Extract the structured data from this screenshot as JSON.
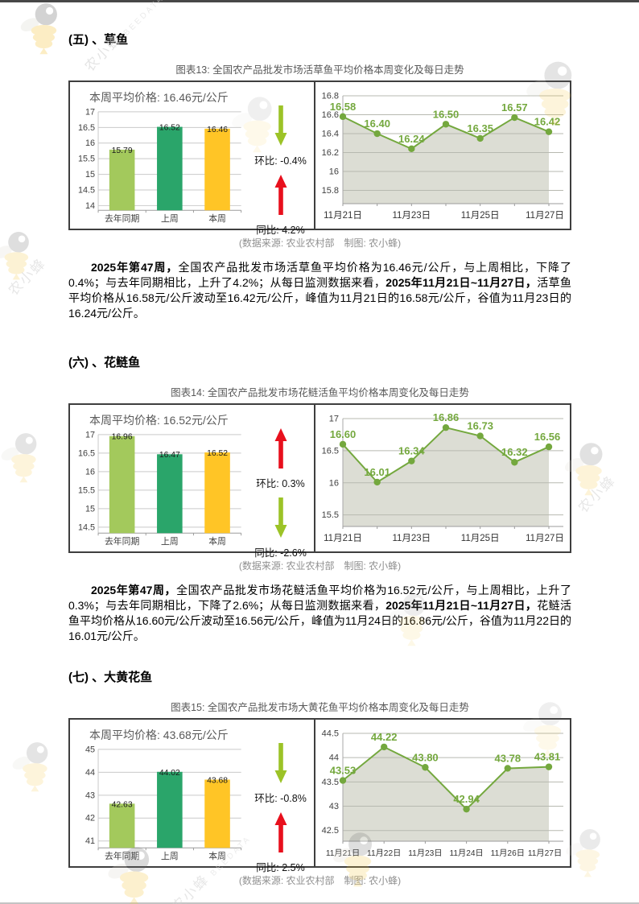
{
  "page": {
    "watermark": {
      "brand": "农小蜂",
      "brand_en": "BEEDATA"
    }
  },
  "sections": [
    {
      "heading": "(五) 、草鱼",
      "figure_title": "图表13: 全国农产品批发市场活草鱼平均价格本周变化及每日走势",
      "panel_title": "本周平均价格: 16.46元/公斤",
      "comparisons": [
        {
          "label": "环比:",
          "value": "-0.4%",
          "direction": "down",
          "color": "#9CC327"
        },
        {
          "label": "同比:",
          "value": "4.2%",
          "direction": "up",
          "color": "#E8101D"
        }
      ],
      "caption": "(数据来源: 农业农村部　制图: 农小蜂)",
      "paragraph": [
        {
          "text": "2025年第47周，",
          "bold": true
        },
        {
          "text": "全国农产品批发市场活草鱼平均价格为16.46元/公斤，与上周相比，下降了0.4%；与去年同期相比，上升了4.2%；从每日监测数据来看，",
          "bold": false
        },
        {
          "text": "2025年11月21日~11月27日，",
          "bold": true
        },
        {
          "text": "活草鱼平均价格从16.58元/公斤波动至16.42元/公斤，峰值为11月21日的16.58元/公斤，谷值为11月23日的16.24元/公斤。",
          "bold": false
        }
      ],
      "chart_data": {
        "bar": {
          "type": "bar",
          "categories": [
            "去年同期",
            "上周",
            "本周"
          ],
          "values": [
            15.79,
            16.52,
            16.46
          ],
          "bar_colors": [
            "#A3C95C",
            "#2AA56A",
            "#FFC526"
          ],
          "yticks": [
            14,
            14.5,
            15,
            15.5,
            16,
            16.5,
            17
          ],
          "ylim": [
            13.85,
            17
          ]
        },
        "line": {
          "type": "area",
          "x": [
            "11月21日",
            "11月22日",
            "11月23日",
            "11月24日",
            "11月25日",
            "11月26日",
            "11月27日"
          ],
          "xtick_indices": [
            0,
            2,
            4,
            6
          ],
          "values": [
            16.58,
            16.4,
            16.24,
            16.5,
            16.35,
            16.57,
            16.42
          ],
          "yticks": [
            15.8,
            16,
            16.2,
            16.4,
            16.6,
            16.8
          ],
          "ylim": [
            15.66,
            16.8
          ],
          "color": "#74A83E",
          "fill_color": "#DCDDD4"
        }
      }
    },
    {
      "heading": "(六) 、花鲢鱼",
      "figure_title": "图表14: 全国农产品批发市场花鲢活鱼平均价格本周变化及每日走势",
      "panel_title": "本周平均价格: 16.52元/公斤",
      "comparisons": [
        {
          "label": "环比:",
          "value": "0.3%",
          "direction": "up",
          "color": "#E8101D"
        },
        {
          "label": "同比:",
          "value": "-2.6%",
          "direction": "down",
          "color": "#9CC327"
        }
      ],
      "caption": "(数据来源: 农业农村部　制图: 农小蜂)",
      "paragraph": [
        {
          "text": "2025年第47周，",
          "bold": true
        },
        {
          "text": "全国农产品批发市场花鲢活鱼平均价格为16.52元/公斤，与上周相比，上升了0.3%；与去年同期相比，下降了2.6%；从每日监测数据来看，",
          "bold": false
        },
        {
          "text": "2025年11月21日~11月27日，",
          "bold": true
        },
        {
          "text": "花鲢活鱼平均价格从16.60元/公斤波动至16.56元/公斤，峰值为11月24日的16.86元/公斤，谷值为11月22日的16.01元/公斤。",
          "bold": false
        }
      ],
      "chart_data": {
        "bar": {
          "type": "bar",
          "categories": [
            "去年同期",
            "上周",
            "本周"
          ],
          "values": [
            16.96,
            16.47,
            16.52
          ],
          "bar_colors": [
            "#A3C95C",
            "#2AA56A",
            "#FFC526"
          ],
          "yticks": [
            14.5,
            15,
            15.5,
            16,
            16.5,
            17
          ],
          "ylim": [
            14.34,
            17
          ]
        },
        "line": {
          "type": "area",
          "x": [
            "11月21日",
            "11月22日",
            "11月23日",
            "11月24日",
            "11月25日",
            "11月26日",
            "11月27日"
          ],
          "xtick_indices": [
            0,
            2,
            4,
            6
          ],
          "values": [
            16.6,
            16.01,
            16.34,
            16.86,
            16.73,
            16.32,
            16.56
          ],
          "yticks": [
            15.5,
            16,
            16.5,
            17
          ],
          "ylim": [
            15.32,
            17
          ],
          "color": "#74A83E",
          "fill_color": "#DCDDD4"
        }
      }
    },
    {
      "heading": "(七) 、大黄花鱼",
      "figure_title": "图表15: 全国农产品批发市场大黄花鱼平均价格本周变化及每日走势",
      "panel_title": "本周平均价格: 43.68元/公斤",
      "comparisons": [
        {
          "label": "环比:",
          "value": "-0.8%",
          "direction": "down",
          "color": "#9CC327"
        },
        {
          "label": "同比:",
          "value": "2.5%",
          "direction": "up",
          "color": "#E8101D"
        }
      ],
      "caption": "(数据来源: 农业农村部　制图: 农小蜂)",
      "paragraph": [],
      "chart_data": {
        "bar": {
          "type": "bar",
          "categories": [
            "去年同期",
            "上周",
            "本周"
          ],
          "values": [
            42.63,
            44.02,
            43.68
          ],
          "bar_colors": [
            "#A3C95C",
            "#2AA56A",
            "#FFC526"
          ],
          "yticks": [
            41,
            42,
            43,
            44,
            45
          ],
          "ylim": [
            40.7,
            45
          ]
        },
        "line": {
          "type": "area",
          "x": [
            "11月21日",
            "11月22日",
            "11月23日",
            "11月24日",
            "11月26日",
            "11月27日"
          ],
          "xtick_indices": [
            0,
            1,
            2,
            3,
            4,
            5
          ],
          "values": [
            43.53,
            44.22,
            43.8,
            42.94,
            43.78,
            43.81
          ],
          "yticks": [
            42.5,
            43,
            43.5,
            44,
            44.5
          ],
          "ylim": [
            42.28,
            44.5
          ],
          "color": "#74A83E",
          "fill_color": "#DCDDD4"
        }
      }
    }
  ]
}
